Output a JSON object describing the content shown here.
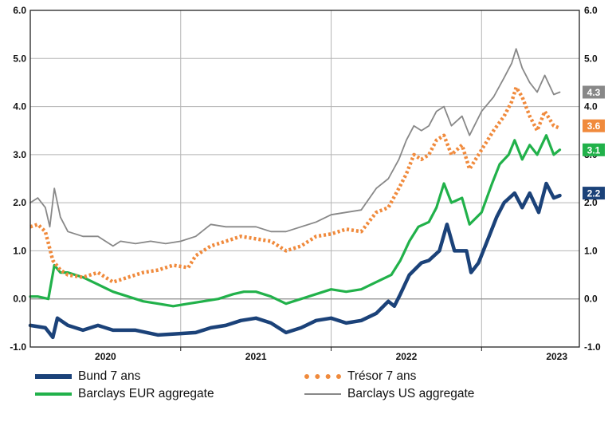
{
  "chart_data": {
    "type": "line",
    "x_ticks": [
      "2020",
      "2021",
      "2022",
      "2023"
    ],
    "ylim": [
      -1.0,
      6.0
    ],
    "y_ticks": [
      "6.0",
      "5.0",
      "4.0",
      "3.0",
      "2.0",
      "1.0",
      "0.0",
      "-1.0"
    ],
    "y_ticks_right": [
      "6.0",
      "5.0",
      "4.0",
      "3.0",
      "2.0",
      "1.0",
      "0.0",
      "-1.0"
    ],
    "grid": true,
    "legend_position": "bottom",
    "series": [
      {
        "name": "Bund 7 ans",
        "color": "#1b4279",
        "style": "solid-thick",
        "end_label": "2.2",
        "points": [
          [
            2019.5,
            -0.55
          ],
          [
            2019.6,
            -0.6
          ],
          [
            2019.65,
            -0.8
          ],
          [
            2019.68,
            -0.4
          ],
          [
            2019.75,
            -0.55
          ],
          [
            2019.85,
            -0.65
          ],
          [
            2019.95,
            -0.55
          ],
          [
            2020.05,
            -0.65
          ],
          [
            2020.2,
            -0.65
          ],
          [
            2020.35,
            -0.75
          ],
          [
            2020.5,
            -0.72
          ],
          [
            2020.6,
            -0.7
          ],
          [
            2020.7,
            -0.6
          ],
          [
            2020.8,
            -0.55
          ],
          [
            2020.9,
            -0.45
          ],
          [
            2021.0,
            -0.4
          ],
          [
            2021.1,
            -0.5
          ],
          [
            2021.2,
            -0.7
          ],
          [
            2021.3,
            -0.6
          ],
          [
            2021.4,
            -0.45
          ],
          [
            2021.5,
            -0.4
          ],
          [
            2021.6,
            -0.5
          ],
          [
            2021.7,
            -0.45
          ],
          [
            2021.8,
            -0.3
          ],
          [
            2021.88,
            -0.05
          ],
          [
            2021.92,
            -0.15
          ],
          [
            2021.96,
            0.1
          ],
          [
            2022.02,
            0.5
          ],
          [
            2022.1,
            0.75
          ],
          [
            2022.15,
            0.8
          ],
          [
            2022.22,
            1.0
          ],
          [
            2022.27,
            1.55
          ],
          [
            2022.32,
            1.0
          ],
          [
            2022.4,
            1.0
          ],
          [
            2022.43,
            0.55
          ],
          [
            2022.48,
            0.75
          ],
          [
            2022.55,
            1.3
          ],
          [
            2022.6,
            1.7
          ],
          [
            2022.65,
            2.0
          ],
          [
            2022.72,
            2.2
          ],
          [
            2022.77,
            1.9
          ],
          [
            2022.82,
            2.2
          ],
          [
            2022.88,
            1.8
          ],
          [
            2022.93,
            2.4
          ],
          [
            2022.98,
            2.1
          ],
          [
            2023.02,
            2.15
          ]
        ]
      },
      {
        "name": "Trésor 7 ans",
        "color": "#f08a3c",
        "style": "dotted",
        "end_label": "3.6",
        "points": [
          [
            2019.5,
            1.5
          ],
          [
            2019.55,
            1.55
          ],
          [
            2019.6,
            1.4
          ],
          [
            2019.65,
            0.8
          ],
          [
            2019.7,
            0.6
          ],
          [
            2019.75,
            0.5
          ],
          [
            2019.85,
            0.45
          ],
          [
            2019.95,
            0.55
          ],
          [
            2020.05,
            0.35
          ],
          [
            2020.15,
            0.45
          ],
          [
            2020.25,
            0.55
          ],
          [
            2020.35,
            0.6
          ],
          [
            2020.45,
            0.7
          ],
          [
            2020.55,
            0.65
          ],
          [
            2020.6,
            0.9
          ],
          [
            2020.7,
            1.1
          ],
          [
            2020.8,
            1.2
          ],
          [
            2020.9,
            1.3
          ],
          [
            2021.0,
            1.25
          ],
          [
            2021.1,
            1.2
          ],
          [
            2021.15,
            1.1
          ],
          [
            2021.2,
            1.0
          ],
          [
            2021.3,
            1.1
          ],
          [
            2021.4,
            1.3
          ],
          [
            2021.5,
            1.35
          ],
          [
            2021.6,
            1.45
          ],
          [
            2021.7,
            1.4
          ],
          [
            2021.8,
            1.8
          ],
          [
            2021.88,
            1.9
          ],
          [
            2021.95,
            2.3
          ],
          [
            2022.0,
            2.6
          ],
          [
            2022.05,
            3.0
          ],
          [
            2022.1,
            2.9
          ],
          [
            2022.15,
            3.0
          ],
          [
            2022.2,
            3.3
          ],
          [
            2022.25,
            3.4
          ],
          [
            2022.3,
            3.0
          ],
          [
            2022.37,
            3.2
          ],
          [
            2022.42,
            2.7
          ],
          [
            2022.5,
            3.1
          ],
          [
            2022.58,
            3.5
          ],
          [
            2022.65,
            3.8
          ],
          [
            2022.7,
            4.1
          ],
          [
            2022.73,
            4.4
          ],
          [
            2022.77,
            4.2
          ],
          [
            2022.82,
            3.8
          ],
          [
            2022.87,
            3.5
          ],
          [
            2022.92,
            3.9
          ],
          [
            2022.98,
            3.6
          ],
          [
            2023.02,
            3.55
          ]
        ]
      },
      {
        "name": "Barclays EUR aggregate",
        "color": "#21b14a",
        "style": "solid-medium",
        "end_label": "3.1",
        "points": [
          [
            2019.5,
            0.05
          ],
          [
            2019.55,
            0.05
          ],
          [
            2019.62,
            0.0
          ],
          [
            2019.66,
            0.7
          ],
          [
            2019.7,
            0.55
          ],
          [
            2019.75,
            0.55
          ],
          [
            2019.85,
            0.45
          ],
          [
            2019.95,
            0.3
          ],
          [
            2020.05,
            0.15
          ],
          [
            2020.15,
            0.05
          ],
          [
            2020.25,
            -0.05
          ],
          [
            2020.35,
            -0.1
          ],
          [
            2020.45,
            -0.15
          ],
          [
            2020.55,
            -0.1
          ],
          [
            2020.65,
            -0.05
          ],
          [
            2020.75,
            0.0
          ],
          [
            2020.85,
            0.1
          ],
          [
            2020.92,
            0.15
          ],
          [
            2021.0,
            0.15
          ],
          [
            2021.1,
            0.05
          ],
          [
            2021.2,
            -0.1
          ],
          [
            2021.3,
            0.0
          ],
          [
            2021.4,
            0.1
          ],
          [
            2021.5,
            0.2
          ],
          [
            2021.6,
            0.15
          ],
          [
            2021.7,
            0.2
          ],
          [
            2021.8,
            0.35
          ],
          [
            2021.9,
            0.5
          ],
          [
            2021.96,
            0.8
          ],
          [
            2022.02,
            1.2
          ],
          [
            2022.08,
            1.5
          ],
          [
            2022.15,
            1.6
          ],
          [
            2022.2,
            1.9
          ],
          [
            2022.25,
            2.4
          ],
          [
            2022.3,
            2.0
          ],
          [
            2022.37,
            2.1
          ],
          [
            2022.42,
            1.55
          ],
          [
            2022.5,
            1.8
          ],
          [
            2022.57,
            2.4
          ],
          [
            2022.62,
            2.8
          ],
          [
            2022.68,
            3.0
          ],
          [
            2022.72,
            3.3
          ],
          [
            2022.77,
            2.9
          ],
          [
            2022.82,
            3.2
          ],
          [
            2022.87,
            3.0
          ],
          [
            2022.93,
            3.4
          ],
          [
            2022.98,
            3.0
          ],
          [
            2023.02,
            3.1
          ]
        ]
      },
      {
        "name": "Barclays US aggregate",
        "color": "#888888",
        "style": "solid-thin",
        "end_label": "4.3",
        "points": [
          [
            2019.5,
            2.0
          ],
          [
            2019.55,
            2.1
          ],
          [
            2019.6,
            1.9
          ],
          [
            2019.63,
            1.5
          ],
          [
            2019.66,
            2.3
          ],
          [
            2019.7,
            1.7
          ],
          [
            2019.75,
            1.4
          ],
          [
            2019.85,
            1.3
          ],
          [
            2019.95,
            1.3
          ],
          [
            2020.05,
            1.1
          ],
          [
            2020.1,
            1.2
          ],
          [
            2020.2,
            1.15
          ],
          [
            2020.3,
            1.2
          ],
          [
            2020.4,
            1.15
          ],
          [
            2020.5,
            1.2
          ],
          [
            2020.6,
            1.3
          ],
          [
            2020.7,
            1.55
          ],
          [
            2020.8,
            1.5
          ],
          [
            2020.9,
            1.5
          ],
          [
            2021.0,
            1.5
          ],
          [
            2021.1,
            1.4
          ],
          [
            2021.2,
            1.4
          ],
          [
            2021.3,
            1.5
          ],
          [
            2021.4,
            1.6
          ],
          [
            2021.5,
            1.75
          ],
          [
            2021.6,
            1.8
          ],
          [
            2021.7,
            1.85
          ],
          [
            2021.8,
            2.3
          ],
          [
            2021.88,
            2.5
          ],
          [
            2021.95,
            2.9
          ],
          [
            2022.0,
            3.3
          ],
          [
            2022.05,
            3.6
          ],
          [
            2022.1,
            3.5
          ],
          [
            2022.15,
            3.6
          ],
          [
            2022.2,
            3.9
          ],
          [
            2022.25,
            4.0
          ],
          [
            2022.3,
            3.6
          ],
          [
            2022.37,
            3.8
          ],
          [
            2022.42,
            3.4
          ],
          [
            2022.5,
            3.9
          ],
          [
            2022.58,
            4.2
          ],
          [
            2022.65,
            4.6
          ],
          [
            2022.7,
            4.9
          ],
          [
            2022.73,
            5.2
          ],
          [
            2022.77,
            4.8
          ],
          [
            2022.82,
            4.5
          ],
          [
            2022.87,
            4.3
          ],
          [
            2022.92,
            4.65
          ],
          [
            2022.98,
            4.25
          ],
          [
            2023.02,
            4.3
          ]
        ]
      }
    ]
  }
}
